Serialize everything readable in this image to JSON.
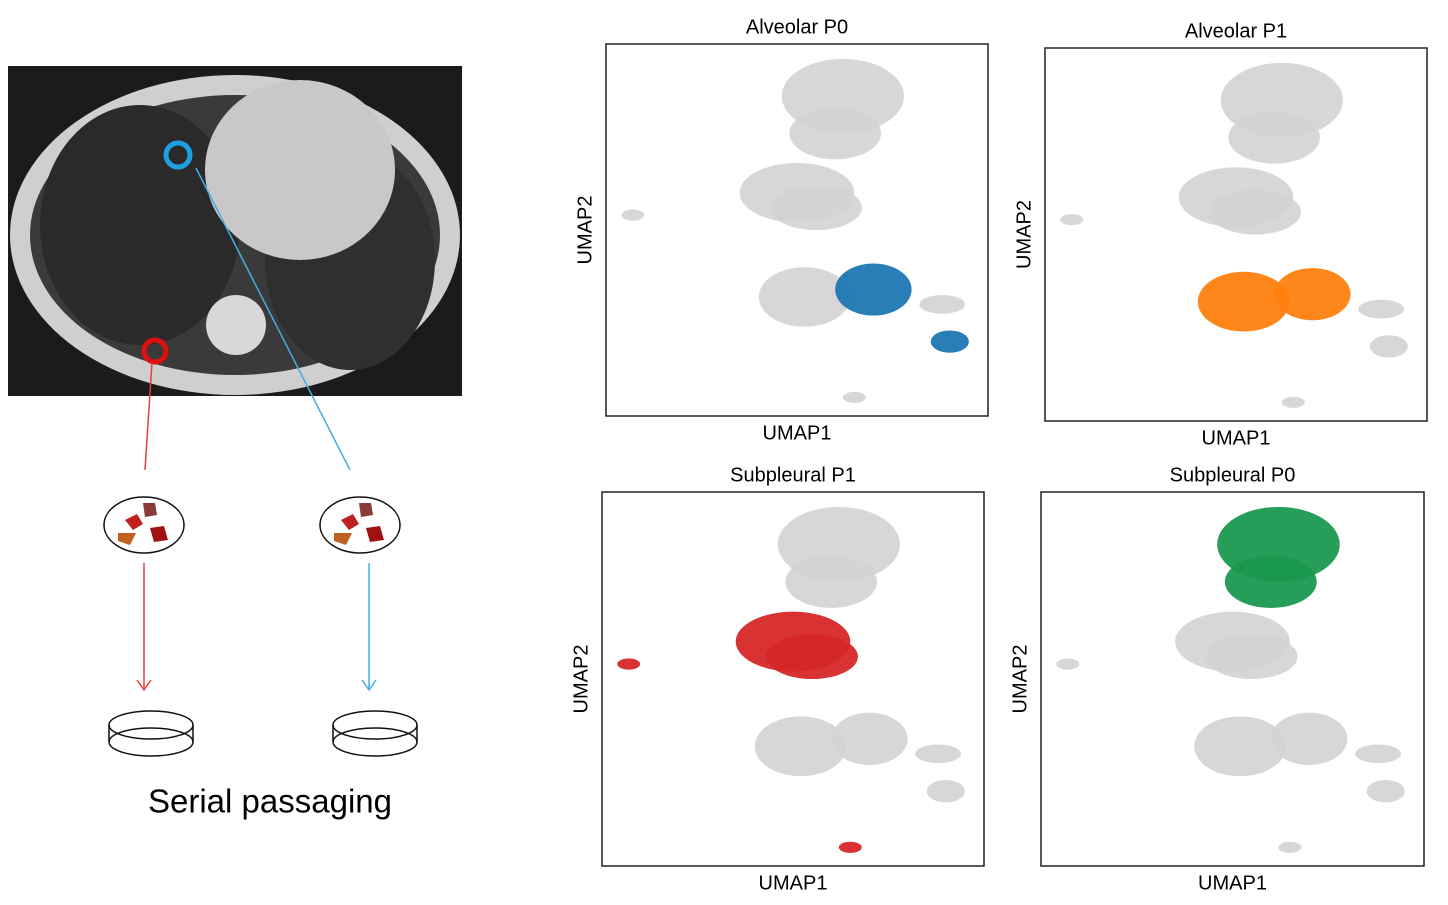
{
  "caption": "Serial passaging",
  "panels": [
    {
      "title": "Alveolar P0",
      "x_label": "UMAP1",
      "y_label": "UMAP2",
      "color": "#1f77b4"
    },
    {
      "title": "Alveolar P1",
      "x_label": "UMAP1",
      "y_label": "UMAP2",
      "color": "#ff7f0e"
    },
    {
      "title": "Subpleural P1",
      "x_label": "UMAP1",
      "y_label": "UMAP2",
      "color": "#d62728"
    },
    {
      "title": "Subpleural P0",
      "x_label": "UMAP1",
      "y_label": "UMAP2",
      "color": "#1a9850"
    }
  ]
}
